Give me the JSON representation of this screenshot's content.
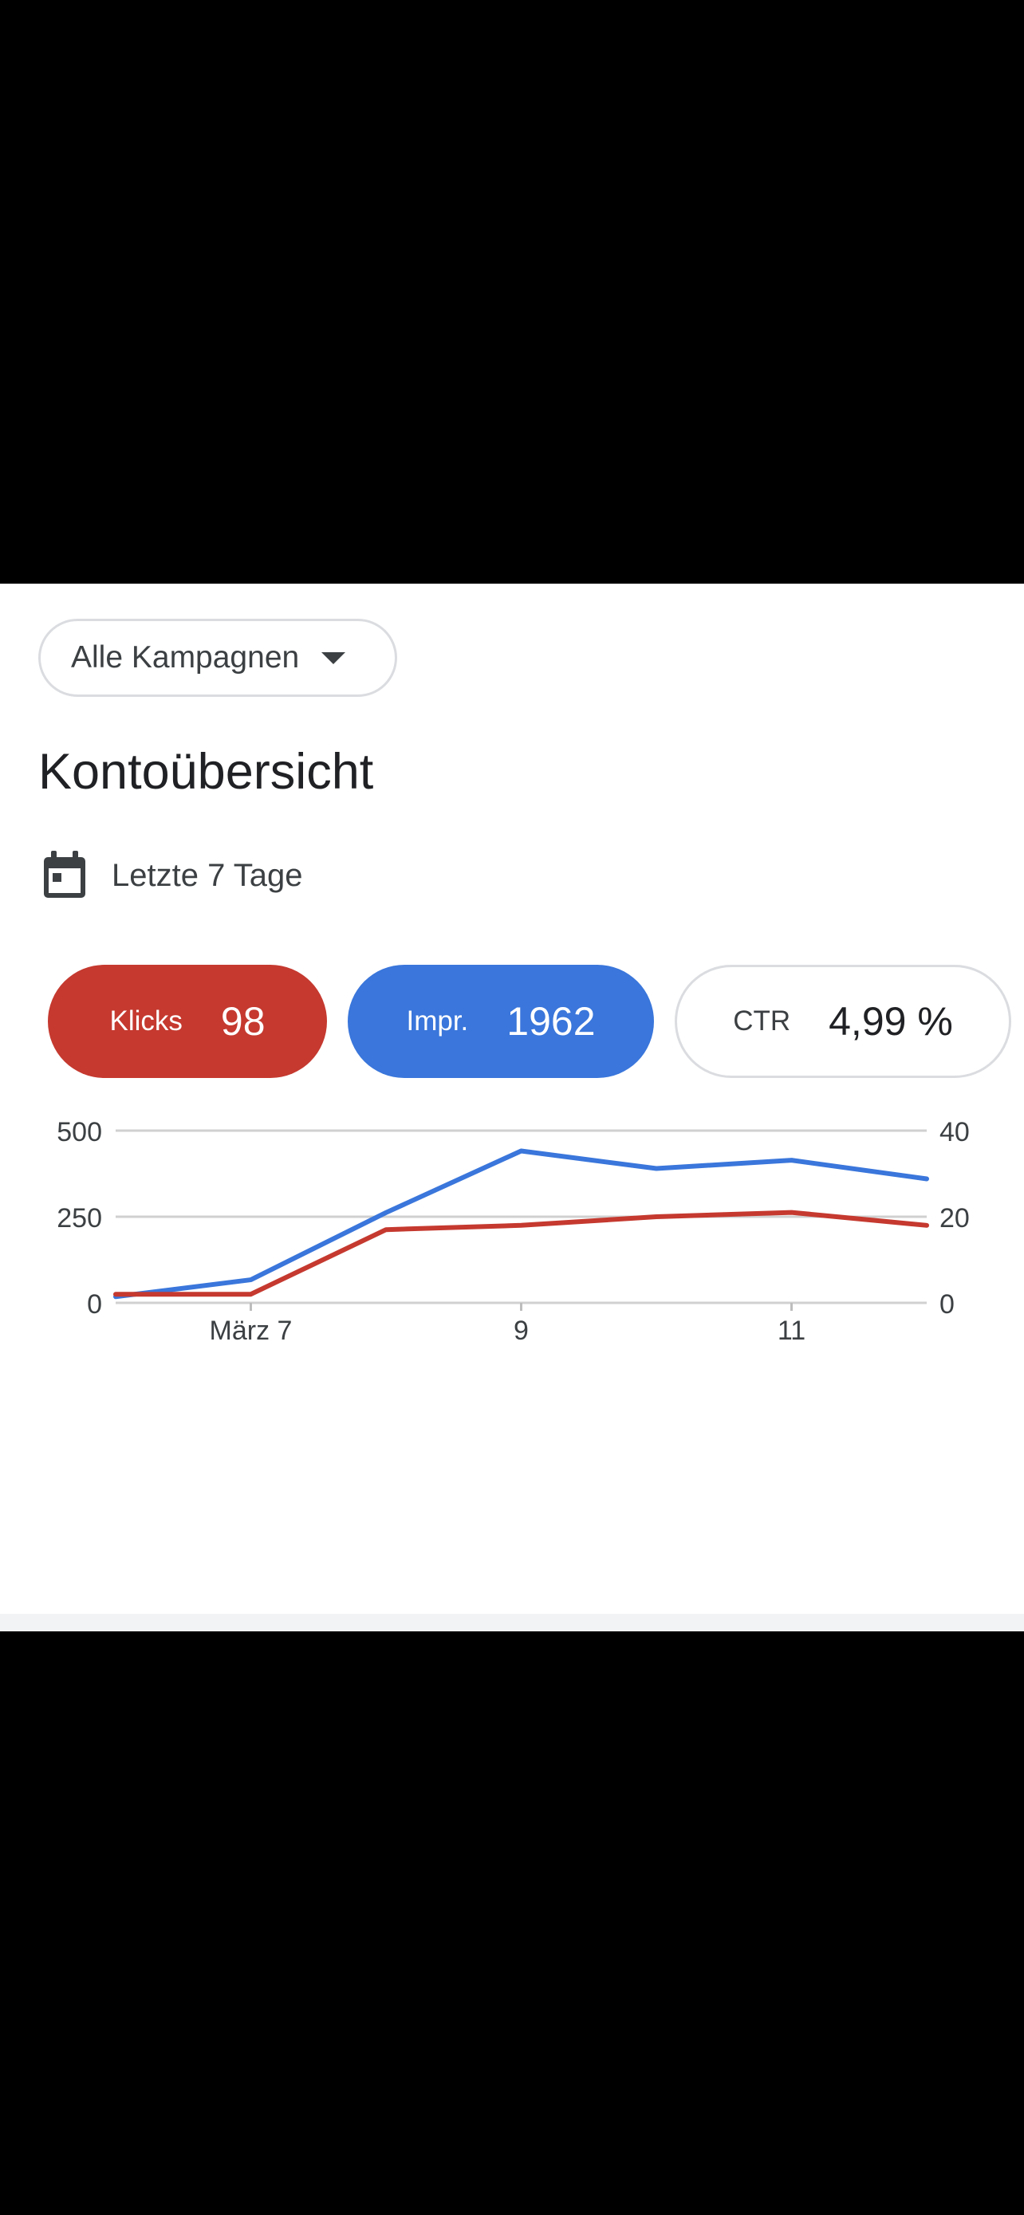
{
  "campaign_selector": {
    "label": "Alle Kampagnen",
    "icon": "caret-down-icon"
  },
  "title": "Kontoübersicht",
  "date_range": {
    "label": "Letzte 7 Tage",
    "icon": "calendar-icon"
  },
  "metrics": [
    {
      "label": "Klicks",
      "value": "98",
      "color": "#c5392f"
    },
    {
      "label": "Impr.",
      "value": "1962",
      "color": "#3a76db"
    },
    {
      "label": "CTR",
      "value": "4,99 %",
      "color": "#ffffff"
    }
  ],
  "chart_data": {
    "type": "line",
    "x": [
      "2024-03-06",
      "2024-03-07",
      "2024-03-08",
      "2024-03-09",
      "2024-03-10",
      "2024-03-11",
      "2024-03-12"
    ],
    "x_ticks": [
      {
        "x": "2024-03-07",
        "label": "März 7"
      },
      {
        "x": "2024-03-09",
        "label": "9"
      },
      {
        "x": "2024-03-11",
        "label": "11"
      }
    ],
    "y_left": {
      "ticks": [
        "0",
        "250",
        "500"
      ],
      "range": [
        0,
        500
      ]
    },
    "y_right": {
      "ticks": [
        "0",
        "20",
        "40"
      ],
      "range": [
        0,
        40
      ]
    },
    "grid": true,
    "series": [
      {
        "name": "Impr.",
        "axis": "left",
        "color": "#3a76db",
        "values": [
          18,
          67,
          262,
          441,
          390,
          414,
          360
        ]
      },
      {
        "name": "Klicks",
        "axis": "right",
        "color": "#c5392f",
        "values": [
          2,
          2,
          17,
          18,
          20,
          21,
          18
        ]
      }
    ]
  }
}
